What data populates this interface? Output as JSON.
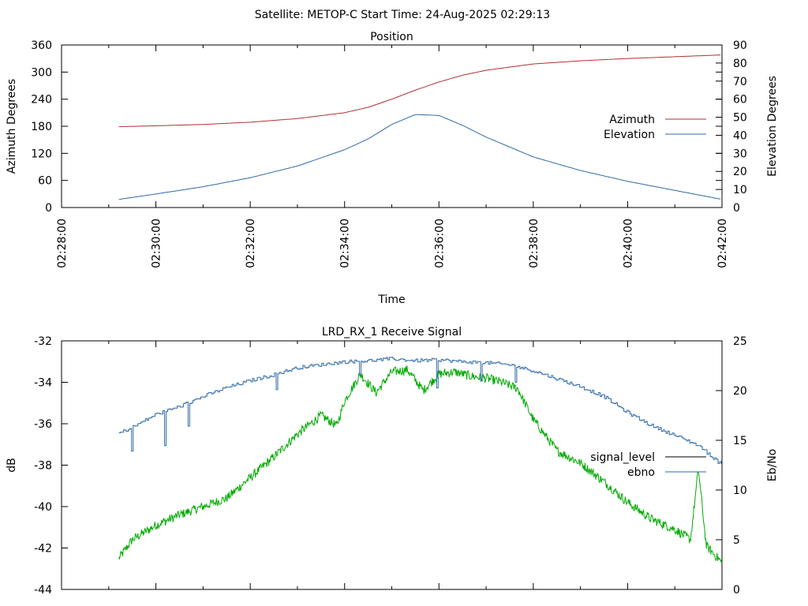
{
  "header": {
    "satellite": "Satellite: METOP-C",
    "start_time": "Start Time: 24-Aug-2025 02:29:13"
  },
  "colors": {
    "azimuth": "#b03030",
    "elevation": "#2f6aa8",
    "signal_level": "#000000",
    "signal_trace": "#00aa00",
    "ebno": "#2f6aa8"
  },
  "chart_data": [
    {
      "type": "line",
      "title": "Position",
      "xlabel": "Time",
      "ylabel": "Azimuth Degrees",
      "y2label": "Elevation Degrees",
      "xlim": [
        "02:28:00",
        "02:42:00"
      ],
      "x_ticks": [
        "02:28:00",
        "02:30:00",
        "02:32:00",
        "02:34:00",
        "02:36:00",
        "02:38:00",
        "02:40:00",
        "02:42:00"
      ],
      "ylim": [
        0,
        360
      ],
      "y_ticks": [
        "0",
        "60",
        "120",
        "180",
        "240",
        "300",
        "360"
      ],
      "y2lim": [
        0,
        90
      ],
      "y2_ticks": [
        "0",
        "10",
        "20",
        "30",
        "40",
        "50",
        "60",
        "70",
        "80",
        "90"
      ],
      "legend_position": "right",
      "grid": false,
      "series": [
        {
          "name": "Azimuth",
          "axis": "y",
          "x": [
            "02:29:13",
            "02:30:00",
            "02:31:00",
            "02:32:00",
            "02:33:00",
            "02:34:00",
            "02:34:30",
            "02:35:00",
            "02:35:30",
            "02:36:00",
            "02:36:30",
            "02:37:00",
            "02:38:00",
            "02:39:00",
            "02:40:00",
            "02:41:00",
            "02:42:00"
          ],
          "values": [
            179,
            181,
            184,
            189,
            197,
            210,
            222,
            240,
            260,
            278,
            293,
            304,
            318,
            325,
            330,
            334,
            338
          ]
        },
        {
          "name": "Elevation",
          "axis": "y2",
          "x": [
            "02:29:13",
            "02:30:00",
            "02:31:00",
            "02:32:00",
            "02:33:00",
            "02:34:00",
            "02:34:30",
            "02:35:00",
            "02:35:30",
            "02:36:00",
            "02:36:30",
            "02:37:00",
            "02:38:00",
            "02:39:00",
            "02:40:00",
            "02:41:00",
            "02:42:00"
          ],
          "values": [
            4.5,
            7.5,
            11.5,
            16.5,
            23,
            32,
            38,
            46,
            51.5,
            51,
            45.5,
            39,
            28,
            20.5,
            14.5,
            9.5,
            4.5
          ]
        }
      ]
    },
    {
      "type": "line",
      "title": "LRD_RX_1 Receive Signal",
      "xlabel": "",
      "ylabel": "dB",
      "y2label": "Eb/No",
      "xlim": [
        "02:28:00",
        "02:42:00"
      ],
      "ylim": [
        -44,
        -32
      ],
      "y_ticks": [
        "-44",
        "-42",
        "-40",
        "-38",
        "-36",
        "-34",
        "-32"
      ],
      "y2lim": [
        0,
        25
      ],
      "y2_ticks": [
        "0",
        "5",
        "10",
        "15",
        "20",
        "25"
      ],
      "legend_position": "right",
      "grid": false,
      "series": [
        {
          "name": "signal_level",
          "axis": "y",
          "x": [
            "02:29:13",
            "02:29:30",
            "02:30:00",
            "02:30:30",
            "02:31:00",
            "02:31:30",
            "02:32:00",
            "02:32:30",
            "02:33:00",
            "02:33:30",
            "02:33:50",
            "02:34:00",
            "02:34:20",
            "02:34:40",
            "02:35:00",
            "02:35:20",
            "02:35:40",
            "02:36:00",
            "02:36:20",
            "02:36:40",
            "02:37:00",
            "02:37:20",
            "02:37:40",
            "02:38:00",
            "02:38:30",
            "02:39:00",
            "02:39:30",
            "02:40:00",
            "02:40:30",
            "02:41:00",
            "02:41:20",
            "02:41:30",
            "02:41:40",
            "02:42:00"
          ],
          "values": [
            -42.5,
            -41.6,
            -40.9,
            -40.4,
            -40.0,
            -39.6,
            -38.6,
            -37.6,
            -36.5,
            -35.6,
            -36.1,
            -34.9,
            -33.6,
            -34.5,
            -33.5,
            -33.4,
            -34.4,
            -33.6,
            -33.5,
            -33.7,
            -33.8,
            -34.0,
            -34.3,
            -35.8,
            -37.3,
            -37.9,
            -38.8,
            -39.8,
            -40.6,
            -41.1,
            -41.6,
            -38.2,
            -41.9,
            -42.7
          ]
        },
        {
          "name": "ebno",
          "axis": "y2",
          "x": [
            "02:29:13",
            "02:29:30",
            "02:30:00",
            "02:30:30",
            "02:31:00",
            "02:31:30",
            "02:32:00",
            "02:32:30",
            "02:33:00",
            "02:33:30",
            "02:34:00",
            "02:34:30",
            "02:35:00",
            "02:35:30",
            "02:36:00",
            "02:36:30",
            "02:37:00",
            "02:37:30",
            "02:38:00",
            "02:38:30",
            "02:39:00",
            "02:39:30",
            "02:40:00",
            "02:40:30",
            "02:41:00",
            "02:41:30",
            "02:41:45",
            "02:42:00"
          ],
          "values": [
            15.7,
            16.3,
            17.6,
            18.4,
            19.4,
            20.3,
            21.0,
            21.6,
            22.3,
            22.6,
            22.9,
            23.0,
            23.2,
            23.0,
            23.1,
            22.9,
            22.8,
            22.6,
            22.0,
            21.2,
            20.4,
            19.4,
            17.8,
            16.5,
            15.5,
            14.5,
            13.5,
            12.5
          ]
        }
      ]
    }
  ]
}
